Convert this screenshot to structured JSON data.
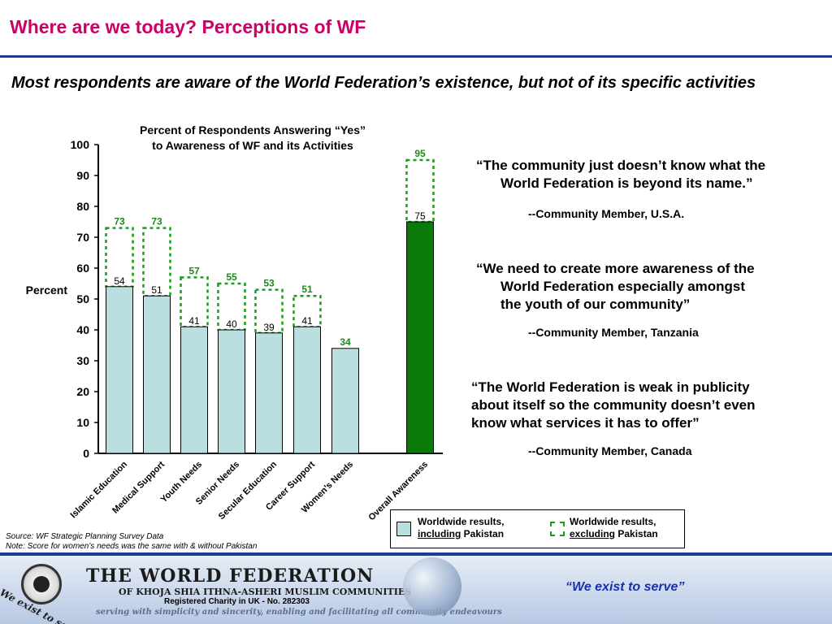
{
  "slide": {
    "title": "Where are we today? Perceptions of WF",
    "headline": "Most respondents are aware of the World Federation’s existence, but not of its specific activities"
  },
  "chart_data": {
    "type": "bar",
    "title_lines": [
      "Percent of Respondents Answering “Yes”",
      "to Awareness of WF and its Activities"
    ],
    "ylabel": "Percent",
    "ylim": [
      0,
      100
    ],
    "yticks": [
      0,
      10,
      20,
      30,
      40,
      50,
      60,
      70,
      80,
      90,
      100
    ],
    "categories": [
      "Islamic Education",
      "Medical Support",
      "Youth Needs",
      "Senior Needs",
      "Secular Education",
      "Career Support",
      "Women’s Needs",
      "Overall Awareness"
    ],
    "series": [
      {
        "name": "Worldwide results, including Pakistan",
        "values": [
          54,
          51,
          41,
          40,
          39,
          41,
          34,
          75
        ],
        "labels": [
          "54",
          "51",
          "41",
          "40",
          "39",
          "41",
          "",
          "75"
        ]
      },
      {
        "name": "Worldwide results, excluding Pakistan",
        "values": [
          73,
          73,
          57,
          55,
          53,
          51,
          34,
          95
        ],
        "labels": [
          "73",
          "73",
          "57",
          "55",
          "53",
          "51",
          "34",
          "95"
        ]
      }
    ],
    "colors": {
      "bar": "#b9dfe0",
      "bar_highlight": "#0a7a0a",
      "dashed": "#1a9e1a",
      "label_green": "#1a8a1a"
    }
  },
  "legend": {
    "item1_line1": "Worldwide results,",
    "item1_em": "including",
    "item1_rest": " Pakistan",
    "item2_line1": "Worldwide results,",
    "item2_em": "excluding",
    "item2_rest": " Pakistan"
  },
  "quotes": [
    {
      "lines": [
        "“The community just doesn’t know what the",
        "World Federation is beyond its name.”"
      ],
      "attribution": "--Community Member, U.S.A."
    },
    {
      "lines": [
        "“We need to create more awareness of the",
        "World Federation especially amongst",
        "the youth of our community”"
      ],
      "attribution": "--Community Member, Tanzania"
    },
    {
      "lines": [
        "“The World Federation is weak in publicity",
        "about itself so the community doesn’t even",
        "know what services it has to offer”"
      ],
      "attribution": "--Community Member, Canada"
    }
  ],
  "notes": {
    "source": "Source: WF Strategic Planning Survey Data",
    "note": "Note: Score for women’s needs was the same with & without Pakistan"
  },
  "footer": {
    "org_name": "THE WORLD FEDERATION",
    "org_sub": "OF KHOJA SHIA ITHNA-ASHERI MUSLIM COMMUNITIES",
    "charity": "Registered Charity in UK - No. 282303",
    "tagline": "serving with simplicity and sincerity, enabling and facilitating all community endeavours",
    "motto": "We exist to serve",
    "slogan": "“We exist to serve”"
  }
}
